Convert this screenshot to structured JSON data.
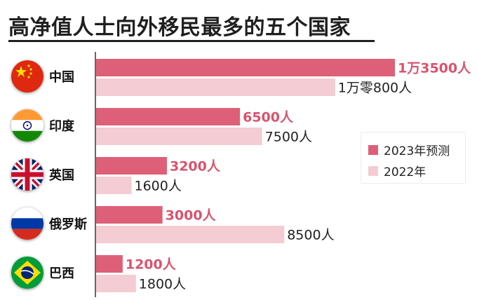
{
  "chart_data": {
    "type": "bar",
    "orientation": "horizontal",
    "title": "高净值人士向外移民最多的五个国家",
    "categories": [
      "中国",
      "印度",
      "英国",
      "俄罗斯",
      "巴西"
    ],
    "series": [
      {
        "name": "2023年预测",
        "color": "#dd6078",
        "values": [
          13500,
          6500,
          3200,
          3000,
          1200
        ],
        "labels": [
          "1万3500人",
          "6500人",
          "3200人",
          "3000人",
          "1200人"
        ]
      },
      {
        "name": "2022年",
        "color": "#f4ccd3",
        "values": [
          10800,
          7500,
          1600,
          8500,
          1800
        ],
        "labels": [
          "1万零800人",
          "7500人",
          "1600人",
          "8500人",
          "1800人"
        ]
      }
    ],
    "xlim": [
      0,
      13500
    ],
    "grid": false,
    "legend_position": "right"
  },
  "flags": [
    "china-flag-icon",
    "india-flag-icon",
    "uk-flag-icon",
    "russia-flag-icon",
    "brazil-flag-icon"
  ],
  "colors": {
    "title": "#1f1f1f",
    "value_label_2023": "#d9536e",
    "value_label_2022": "#222222",
    "axis": "#333333"
  }
}
